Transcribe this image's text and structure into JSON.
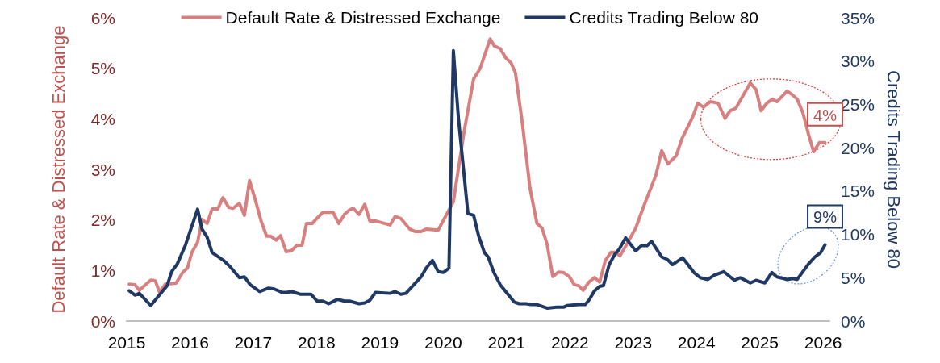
{
  "chart_data": {
    "type": "line",
    "xlim": [
      2015,
      2026.1
    ],
    "xticks": [
      2015,
      2016,
      2017,
      2018,
      2019,
      2020,
      2021,
      2022,
      2023,
      2024,
      2025,
      2026
    ],
    "ylim": [
      0,
      6
    ],
    "yticks": [
      {
        "value": 0,
        "label": "0%"
      },
      {
        "value": 1,
        "label": "1%"
      },
      {
        "value": 2,
        "label": "2%"
      },
      {
        "value": 3,
        "label": "3%"
      },
      {
        "value": 4,
        "label": "4%"
      },
      {
        "value": 5,
        "label": "5%"
      },
      {
        "value": 6,
        "label": "6%"
      }
    ],
    "y2lim": [
      0,
      35
    ],
    "y2ticks": [
      {
        "value": 0,
        "label": "0%"
      },
      {
        "value": 5,
        "label": "5%"
      },
      {
        "value": 10,
        "label": "10%"
      },
      {
        "value": 15,
        "label": "15%"
      },
      {
        "value": 20,
        "label": "20%"
      },
      {
        "value": 25,
        "label": "25%"
      },
      {
        "value": 30,
        "label": "30%"
      },
      {
        "value": 35,
        "label": "35%"
      }
    ],
    "ylabel": "Default Rate & Distressed Exchange",
    "y2label": "Credits Trading Below 80",
    "legend": "top",
    "grid": false,
    "marker": "none",
    "line_style": "solid",
    "series": [
      {
        "name": "Default Rate & Distressed Exchange",
        "color": "#d88080",
        "x": [
          2015.04,
          2015.13,
          2015.2,
          2015.38,
          2015.45,
          2015.52,
          2015.61,
          2015.78,
          2015.89,
          2015.96,
          2016.03,
          2016.12,
          2016.19,
          2016.27,
          2016.35,
          2016.44,
          2016.52,
          2016.61,
          2016.68,
          2016.78,
          2016.86,
          2016.94,
          2017.04,
          2017.12,
          2017.21,
          2017.27,
          2017.36,
          2017.43,
          2017.52,
          2017.61,
          2017.69,
          2017.77,
          2017.84,
          2017.93,
          2018.01,
          2018.1,
          2018.19,
          2018.26,
          2018.35,
          2018.44,
          2018.52,
          2018.58,
          2018.67,
          2018.76,
          2018.84,
          2018.93,
          2019.16,
          2019.24,
          2019.33,
          2019.47,
          2019.56,
          2019.65,
          2019.73,
          2019.92,
          2020.16,
          2020.33,
          2020.48,
          2020.58,
          2020.74,
          2020.81,
          2020.9,
          2020.99,
          2021.07,
          2021.14,
          2021.25,
          2021.37,
          2021.48,
          2021.56,
          2021.64,
          2021.73,
          2021.82,
          2021.9,
          2021.99,
          2022.07,
          2022.14,
          2022.21,
          2022.3,
          2022.39,
          2022.47,
          2022.56,
          2022.65,
          2022.72,
          2022.79,
          2022.88,
          2023.04,
          2023.16,
          2023.36,
          2023.45,
          2023.55,
          2023.68,
          2023.77,
          2023.94,
          2024.02,
          2024.11,
          2024.22,
          2024.34,
          2024.45,
          2024.53,
          2024.62,
          2024.85,
          2024.94,
          2025.02,
          2025.11,
          2025.2,
          2025.27,
          2025.43,
          2025.52,
          2025.59,
          2025.68,
          2025.77,
          2025.85,
          2025.94,
          2026.03
        ],
        "values": [
          0.73,
          0.72,
          0.61,
          0.81,
          0.8,
          0.57,
          0.73,
          0.75,
          0.97,
          1.05,
          1.36,
          1.56,
          2.01,
          1.93,
          2.22,
          2.22,
          2.44,
          2.25,
          2.23,
          2.33,
          2.09,
          2.78,
          2.36,
          1.99,
          1.68,
          1.68,
          1.6,
          1.69,
          1.37,
          1.4,
          1.5,
          1.5,
          1.93,
          1.93,
          2.04,
          2.15,
          2.15,
          2.15,
          1.93,
          2.11,
          2.2,
          2.23,
          2.11,
          2.31,
          1.98,
          1.98,
          1.9,
          2.07,
          2.03,
          1.82,
          1.77,
          1.77,
          1.82,
          1.8,
          2.36,
          3.75,
          4.79,
          4.99,
          5.58,
          5.44,
          5.39,
          5.2,
          5.11,
          4.91,
          3.91,
          2.63,
          1.93,
          1.84,
          1.52,
          0.88,
          0.97,
          0.96,
          0.88,
          0.72,
          0.7,
          0.61,
          0.77,
          0.86,
          0.77,
          1.2,
          1.36,
          1.36,
          1.29,
          1.48,
          1.84,
          2.25,
          2.89,
          3.37,
          3.11,
          3.27,
          3.61,
          4.04,
          4.31,
          4.23,
          4.34,
          4.31,
          4.01,
          4.16,
          4.21,
          4.71,
          4.58,
          4.16,
          4.31,
          4.39,
          4.34,
          4.55,
          4.47,
          4.39,
          4.12,
          3.69,
          3.35,
          3.53,
          3.53
        ]
      },
      {
        "name": "Credits Trading Below 80",
        "color": "#1f3864",
        "axis": "y2",
        "x": [
          2015.04,
          2015.13,
          2015.2,
          2015.38,
          2015.55,
          2015.64,
          2015.71,
          2015.8,
          2015.93,
          2016.12,
          2016.19,
          2016.27,
          2016.35,
          2016.53,
          2016.63,
          2016.78,
          2016.86,
          2016.95,
          2017.1,
          2017.24,
          2017.33,
          2017.46,
          2017.52,
          2017.61,
          2017.74,
          2017.91,
          2018.01,
          2018.1,
          2018.19,
          2018.33,
          2018.44,
          2018.52,
          2018.67,
          2018.76,
          2018.84,
          2018.93,
          2019.16,
          2019.24,
          2019.33,
          2019.41,
          2019.65,
          2019.73,
          2019.83,
          2019.92,
          2020.0,
          2020.09,
          2020.16,
          2020.24,
          2020.39,
          2020.48,
          2020.56,
          2020.65,
          2020.71,
          2020.8,
          2020.9,
          2021.12,
          2021.2,
          2021.31,
          2021.39,
          2021.48,
          2021.64,
          2021.79,
          2021.9,
          2021.96,
          2022.14,
          2022.24,
          2022.3,
          2022.39,
          2022.47,
          2022.53,
          2022.62,
          2022.71,
          2022.78,
          2022.88,
          2023.04,
          2023.13,
          2023.22,
          2023.29,
          2023.45,
          2023.54,
          2023.62,
          2023.78,
          2023.96,
          2024.06,
          2024.18,
          2024.28,
          2024.43,
          2024.6,
          2024.69,
          2024.85,
          2024.94,
          2025.08,
          2025.19,
          2025.27,
          2025.43,
          2025.52,
          2025.59,
          2025.77,
          2025.87,
          2025.96,
          2026.03
        ],
        "values": [
          3.5,
          3.0,
          3.2,
          1.8,
          3.3,
          4.1,
          5.7,
          6.6,
          8.8,
          12.9,
          10.6,
          9.7,
          7.9,
          7.0,
          6.3,
          5.0,
          5.1,
          4.2,
          3.4,
          3.8,
          3.7,
          3.3,
          3.3,
          3.4,
          3.1,
          3.1,
          2.3,
          2.3,
          2.0,
          2.5,
          2.3,
          2.3,
          2.0,
          2.1,
          2.4,
          3.3,
          3.2,
          3.4,
          3.1,
          3.2,
          5.1,
          6.1,
          7.0,
          5.7,
          5.6,
          6.1,
          31.2,
          23.4,
          12.4,
          12.2,
          9.8,
          7.9,
          7.4,
          5.6,
          4.2,
          2.2,
          2.0,
          2.0,
          1.9,
          1.9,
          1.5,
          1.6,
          1.6,
          1.8,
          1.9,
          1.9,
          2.4,
          3.5,
          4.0,
          4.1,
          6.5,
          7.7,
          8.3,
          9.6,
          8.1,
          8.7,
          8.7,
          9.2,
          7.4,
          7.1,
          6.5,
          7.3,
          5.6,
          5.0,
          4.8,
          5.3,
          5.7,
          4.7,
          5.0,
          4.4,
          4.7,
          4.4,
          5.6,
          5.1,
          4.8,
          4.9,
          4.8,
          6.6,
          7.4,
          7.9,
          8.8
        ]
      }
    ],
    "annotations": [
      "4%",
      "9%"
    ]
  }
}
